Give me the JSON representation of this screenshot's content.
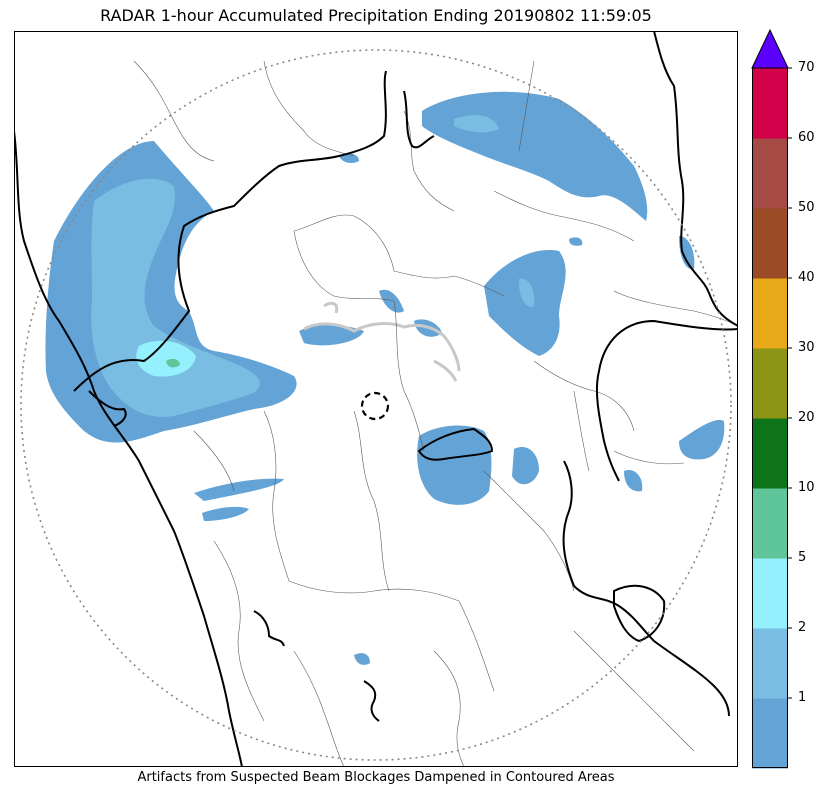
{
  "header": {
    "title": "RADAR 1-hour Accumulated Precipitation Ending 20190802 11:59:05"
  },
  "footer": {
    "note": "Artifacts from Suspected Beam Blockages Dampened in Contoured Areas"
  },
  "colors": {
    "rain_lt1": "#63a3d6",
    "rain_1_2": "#79bde2",
    "rain_2_5": "#95f0fd",
    "rain_5_10": "#5fc59b",
    "over_max": "#5a00ff",
    "border": "#000000",
    "district": "#5a5a5a",
    "range_ring": "#888888",
    "blockage": "#c8c8c8"
  },
  "colorbar": {
    "bins": [
      {
        "lower": 0,
        "upper": 1,
        "color": "#63a3d6"
      },
      {
        "lower": 1,
        "upper": 2,
        "color": "#79bde2"
      },
      {
        "lower": 2,
        "upper": 5,
        "color": "#95f0fd"
      },
      {
        "lower": 5,
        "upper": 10,
        "color": "#5fc59b"
      },
      {
        "lower": 10,
        "upper": 20,
        "color": "#0e7419"
      },
      {
        "lower": 20,
        "upper": 30,
        "color": "#8b9414"
      },
      {
        "lower": 30,
        "upper": 40,
        "color": "#e8a919"
      },
      {
        "lower": 40,
        "upper": 50,
        "color": "#9b4b26"
      },
      {
        "lower": 50,
        "upper": 60,
        "color": "#a54a45"
      },
      {
        "lower": 60,
        "upper": 70,
        "color": "#d3004a"
      }
    ],
    "tick_labels": [
      "1",
      "2",
      "5",
      "10",
      "20",
      "30",
      "40",
      "50",
      "60",
      "70"
    ],
    "extend": "max"
  }
}
